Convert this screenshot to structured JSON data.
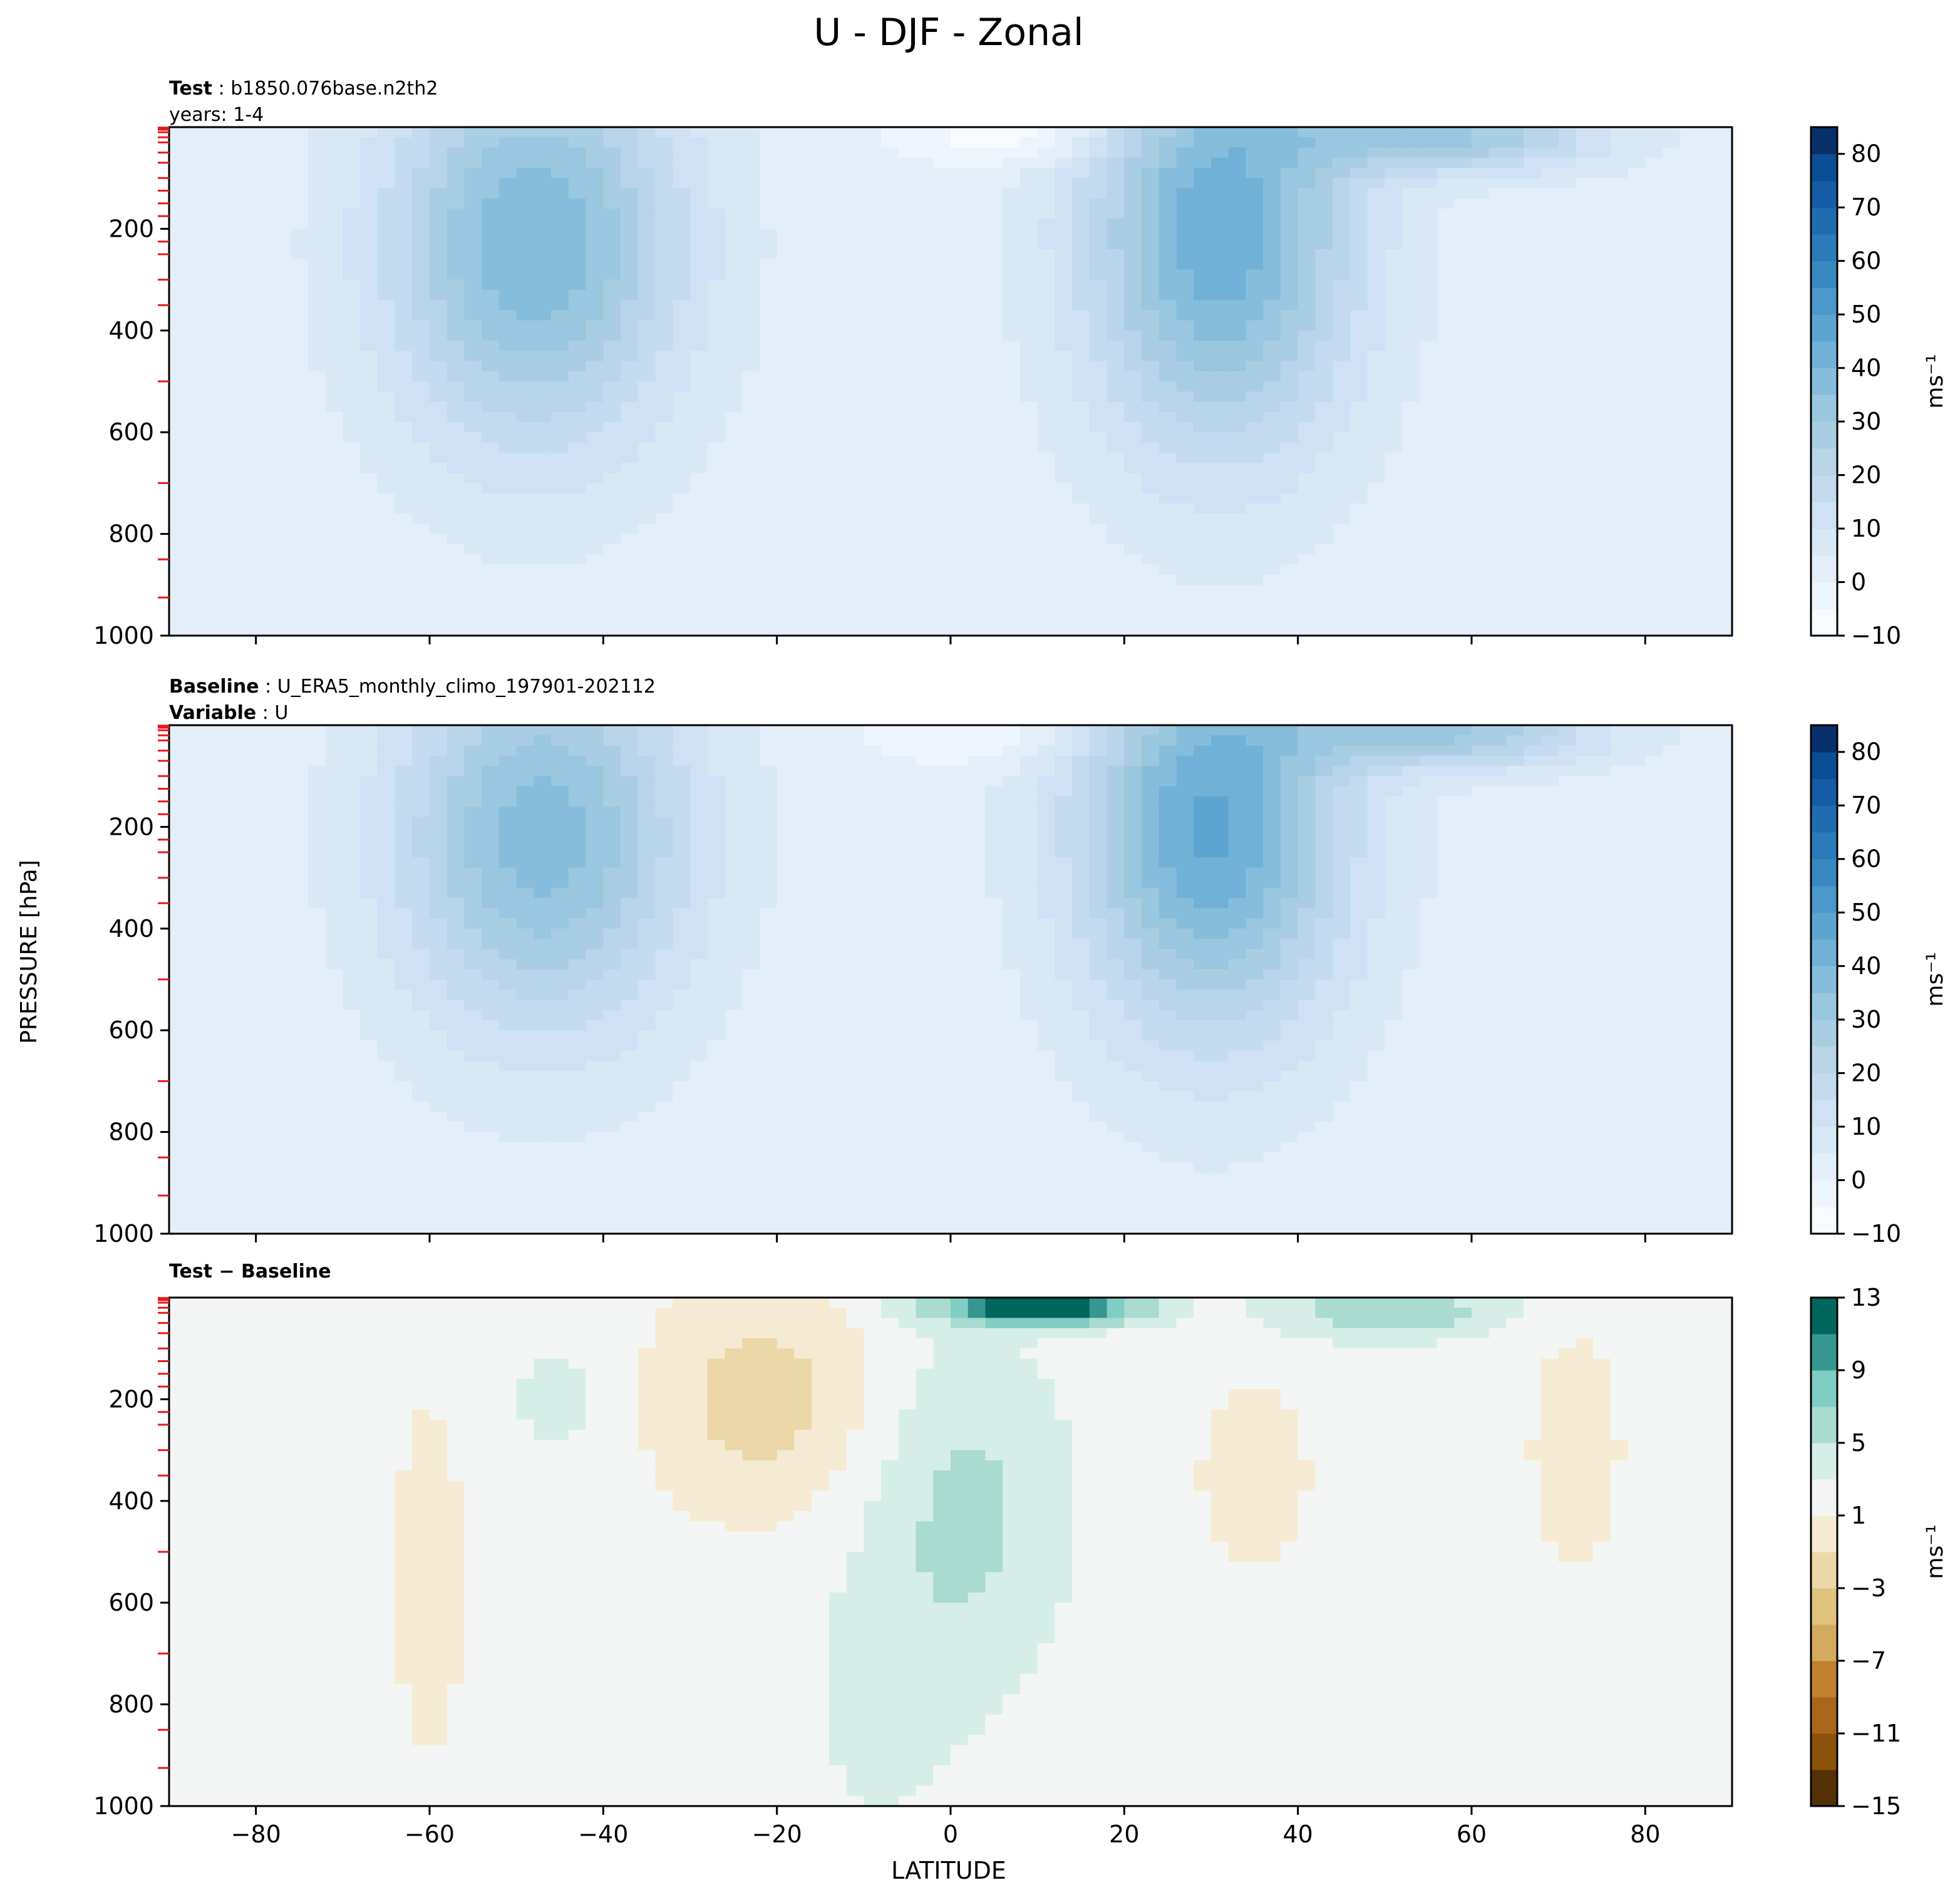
{
  "chart_data": {
    "suptitle": "U - DJF - Zonal",
    "shared_ylabel": "PRESSURE [hPa]",
    "shared_xlabel": "LATITUDE",
    "xlim": [
      -90,
      90
    ],
    "x_ticks": [
      -80,
      -60,
      -40,
      -20,
      0,
      20,
      40,
      60,
      80
    ],
    "x_tick_labels": [
      "−80",
      "−60",
      "−40",
      "−20",
      "0",
      "20",
      "40",
      "60",
      "80"
    ],
    "ylim": [
      1000,
      0
    ],
    "y_ticks": [
      200,
      400,
      600,
      800,
      1000
    ],
    "y_tick_labels": [
      "200",
      "400",
      "600",
      "800",
      "1000"
    ],
    "level_marks_hPa": [
      1,
      3,
      5,
      10,
      20,
      30,
      50,
      70,
      100,
      125,
      150,
      175,
      225,
      250,
      300,
      350,
      500,
      700,
      850,
      925
    ],
    "panels": [
      {
        "id": "test",
        "type": "contourf",
        "header_lines": [
          {
            "bold": "Test",
            "text": "b1850.076base.n2th2"
          },
          {
            "bold": "",
            "text": "years: 1-4"
          }
        ],
        "colorbar": {
          "label": "ms⁻¹",
          "vmin": -10,
          "vmax": 85,
          "ticks": [
            -10,
            0,
            10,
            20,
            30,
            40,
            50,
            60,
            70,
            80
          ],
          "tick_labels": [
            "−10",
            "0",
            "10",
            "20",
            "30",
            "40",
            "50",
            "60",
            "70",
            "80"
          ],
          "levels": [
            -10,
            -5,
            0,
            5,
            10,
            15,
            20,
            25,
            30,
            35,
            40,
            45,
            50,
            55,
            60,
            65,
            70,
            75,
            80,
            85
          ],
          "colors": [
            "#f7fbff",
            "#edf4fc",
            "#e3eef9",
            "#d9e8f5",
            "#cfe1f2",
            "#c4daee",
            "#b8d5ea",
            "#a9cee4",
            "#99c7e0",
            "#87bddc",
            "#71b1d7",
            "#5ea4d1",
            "#4b98ca",
            "#3a8ac2",
            "#2b7bba",
            "#1f6cb1",
            "#145ca6",
            "#0b4e95",
            "#08306b"
          ]
        },
        "features": [
          {
            "lat": -48,
            "p": 230,
            "peak": 38,
            "sx": 12,
            "sp": 280
          },
          {
            "lat": 31,
            "p": 210,
            "peak": 42,
            "sx": 11,
            "sp": 300
          },
          {
            "lat": 58,
            "p": 20,
            "peak": 28,
            "sx": 12,
            "sp": 50
          },
          {
            "lat": 8,
            "p": 15,
            "peak": -12,
            "sx": 9,
            "sp": 40
          }
        ]
      },
      {
        "id": "baseline",
        "type": "contourf",
        "header_lines": [
          {
            "bold": "Baseline",
            "text": "U_ERA5_monthly_climo_197901-202112"
          },
          {
            "bold": "Variable",
            "text": "U"
          }
        ],
        "colorbar": {
          "label": "ms⁻¹",
          "vmin": -10,
          "vmax": 85,
          "ticks": [
            -10,
            0,
            10,
            20,
            30,
            40,
            50,
            60,
            70,
            80
          ],
          "tick_labels": [
            "−10",
            "0",
            "10",
            "20",
            "30",
            "40",
            "50",
            "60",
            "70",
            "80"
          ],
          "levels": [
            -10,
            -5,
            0,
            5,
            10,
            15,
            20,
            25,
            30,
            35,
            40,
            45,
            50,
            55,
            60,
            65,
            70,
            75,
            80,
            85
          ],
          "colors": [
            "#f7fbff",
            "#edf4fc",
            "#e3eef9",
            "#d9e8f5",
            "#cfe1f2",
            "#c4daee",
            "#b8d5ea",
            "#a9cee4",
            "#99c7e0",
            "#87bddc",
            "#71b1d7",
            "#5ea4d1",
            "#4b98ca",
            "#3a8ac2",
            "#2b7bba",
            "#1f6cb1",
            "#145ca6",
            "#0b4e95",
            "#08306b"
          ]
        },
        "features": [
          {
            "lat": -47,
            "p": 220,
            "peak": 36,
            "sx": 12,
            "sp": 270
          },
          {
            "lat": 30,
            "p": 200,
            "peak": 44,
            "sx": 11,
            "sp": 290
          },
          {
            "lat": 58,
            "p": 15,
            "peak": 28,
            "sx": 12,
            "sp": 50
          },
          {
            "lat": 5,
            "p": 20,
            "peak": -8,
            "sx": 10,
            "sp": 40
          }
        ]
      },
      {
        "id": "difference",
        "type": "contourf",
        "header_lines": [
          {
            "bold": "Test − Baseline",
            "text": ""
          }
        ],
        "colorbar": {
          "label": "ms⁻¹",
          "vmin": -15,
          "vmax": 13,
          "ticks": [
            -15,
            -11,
            -7,
            -3,
            1,
            5,
            9,
            13
          ],
          "tick_labels": [
            "−15",
            "−11",
            "−7",
            "−3",
            "1",
            "5",
            "9",
            "13"
          ],
          "levels": [
            -15,
            -13,
            -11,
            -9,
            -7,
            -5,
            -3,
            -1,
            1,
            3,
            5,
            7,
            9,
            11,
            13
          ],
          "colors": [
            "#543005",
            "#8c510a",
            "#a8671b",
            "#bf812d",
            "#d4aa5e",
            "#dfc27d",
            "#ebd7a8",
            "#f5ebd2",
            "#f3f5f4",
            "#d6eee8",
            "#a9dbd0",
            "#80cdc1",
            "#35978f",
            "#01665e"
          ]
        },
        "features": [
          {
            "lat": -22,
            "p": 200,
            "peak": -4,
            "sx": 9,
            "sp": 160
          },
          {
            "lat": 2,
            "p": 420,
            "peak": 3.5,
            "sx": 8,
            "sp": 230
          },
          {
            "lat": 10,
            "p": 20,
            "peak": 12,
            "sx": 8,
            "sp": 25
          },
          {
            "lat": 50,
            "p": 25,
            "peak": 5,
            "sx": 9,
            "sp": 40
          },
          {
            "lat": 35,
            "p": 350,
            "peak": -2.1,
            "sx": 5,
            "sp": 140
          },
          {
            "lat": -60,
            "p": 550,
            "peak": -1.6,
            "sx": 4,
            "sp": 350
          },
          {
            "lat": 72,
            "p": 300,
            "peak": -2.2,
            "sx": 4,
            "sp": 180
          },
          {
            "lat": -45,
            "p": 200,
            "peak": 1.6,
            "sx": 5,
            "sp": 100
          },
          {
            "lat": -8,
            "p": 800,
            "peak": 1.4,
            "sx": 7,
            "sp": 220
          }
        ]
      }
    ]
  }
}
